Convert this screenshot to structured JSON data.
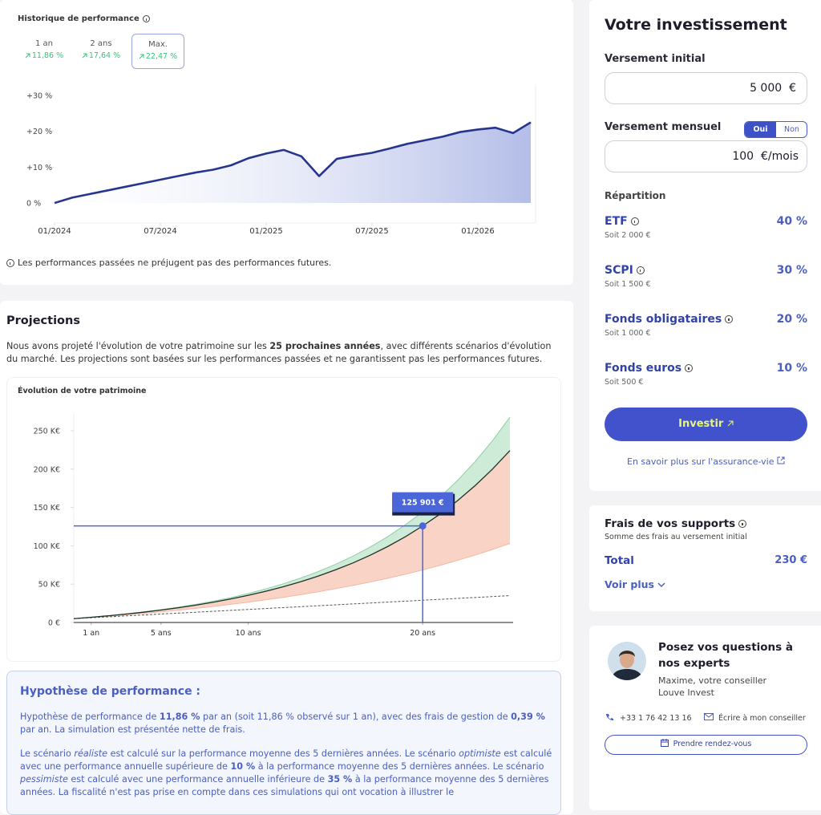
{
  "performance": {
    "title": "Historique de performance",
    "tabs": [
      {
        "label": "1 an",
        "change": "11,86 %"
      },
      {
        "label": "2 ans",
        "change": "17,64 %"
      },
      {
        "label": "Max.",
        "change": "22,47 %"
      }
    ],
    "chart": {
      "type": "line",
      "color": "#27358f",
      "x": [
        "01/2024",
        "02/2024",
        "03/2024",
        "04/2024",
        "05/2024",
        "06/2024",
        "07/2024",
        "08/2024",
        "09/2024",
        "10/2024",
        "11/2024",
        "12/2024",
        "01/2025",
        "02/2025",
        "03/2025",
        "04/2025",
        "05/2025",
        "06/2025",
        "07/2025",
        "08/2025",
        "09/2025",
        "10/2025",
        "11/2025",
        "12/2025",
        "01/2026",
        "02/2026",
        "03/2026",
        "04/2026"
      ],
      "values": [
        0,
        1.5,
        2.5,
        3.5,
        4.5,
        5.5,
        6.5,
        7.5,
        8.5,
        9.3,
        10.5,
        12.5,
        13.8,
        14.8,
        13,
        7.5,
        12.3,
        13.2,
        14,
        15.2,
        16.5,
        17.5,
        18.5,
        19.8,
        20.5,
        21,
        19.5,
        22.5
      ],
      "xlim": [
        "01/2024",
        "04/2026"
      ],
      "xticks": [
        "01/2024",
        "07/2024",
        "01/2025",
        "07/2025",
        "01/2026"
      ],
      "ylim": [
        -2,
        31
      ],
      "yticks": [
        {
          "value": 0,
          "label": "0 %"
        },
        {
          "value": 10,
          "label": "+10 %"
        },
        {
          "value": 20,
          "label": "+20 %"
        },
        {
          "value": 30,
          "label": "+30 %"
        }
      ]
    },
    "disclaimer": "Les performances passées ne préjugent pas des performances futures."
  },
  "projections": {
    "title": "Projections",
    "intro": [
      "Nous avons projeté l'évolution de votre patrimoine sur les ",
      "25 prochaines années",
      ", avec différents scénarios d'évolution du marché. Les projections sont basées sur les performances passées et ne garantissent pas les performances futures."
    ],
    "chart": {
      "type": "area",
      "title": "Évolution de votre patrimoine",
      "x": [
        0,
        1,
        2,
        3,
        4,
        5,
        6,
        7,
        8,
        9,
        10,
        11,
        12,
        13,
        14,
        15,
        16,
        17,
        18,
        19,
        20,
        21,
        22,
        23,
        24,
        25
      ],
      "optimistic": {
        "color": "#cdebd6",
        "values": [
          5.0,
          6.8,
          8.9,
          11.2,
          13.8,
          16.7,
          20.0,
          23.7,
          27.9,
          32.5,
          37.8,
          43.7,
          50.4,
          57.9,
          66.3,
          75.8,
          86.5,
          98.5,
          112.0,
          127.3,
          144.0,
          163.6,
          185.3,
          209.6,
          237.0,
          267.8
        ]
      },
      "realistic": {
        "color": "#1f3327",
        "values": [
          5.0,
          6.8,
          8.8,
          11.0,
          13.4,
          16.2,
          19.2,
          22.6,
          26.4,
          30.7,
          35.4,
          40.7,
          46.6,
          53.1,
          60.4,
          68.6,
          77.6,
          87.8,
          99.1,
          111.7,
          125.9,
          141.4,
          158.8,
          178.3,
          200.0,
          224.2
        ]
      },
      "pessimistic": {
        "color": "#f9d3c5",
        "values": [
          5.0,
          6.6,
          8.2,
          10.0,
          11.9,
          13.9,
          16.1,
          18.4,
          20.9,
          23.6,
          26.4,
          29.5,
          32.7,
          36.2,
          40.0,
          44.0,
          48.2,
          52.8,
          57.7,
          62.9,
          68.5,
          74.5,
          81.0,
          87.8,
          95.2,
          103.0
        ]
      },
      "contributions": {
        "color": "#555555",
        "values": [
          5.0,
          6.2,
          7.4,
          8.6,
          9.8,
          11.0,
          12.2,
          13.4,
          14.6,
          15.8,
          17.0,
          18.2,
          19.4,
          20.6,
          21.8,
          23.0,
          24.2,
          25.4,
          26.6,
          27.8,
          29.0,
          30.2,
          31.4,
          32.6,
          33.8,
          35.0
        ]
      },
      "highlight": {
        "x": 20,
        "value": 125.901,
        "label": "125 901 €",
        "color": "#4a66d8"
      },
      "xlim": [
        0,
        25
      ],
      "xticks": [
        {
          "value": 1,
          "label": "1 an"
        },
        {
          "value": 5,
          "label": "5 ans"
        },
        {
          "value": 10,
          "label": "10 ans"
        },
        {
          "value": 20,
          "label": "20 ans"
        }
      ],
      "ylim": [
        0,
        280
      ],
      "yticks": [
        {
          "value": 0,
          "label": "0 €"
        },
        {
          "value": 50,
          "label": "50 K€"
        },
        {
          "value": 100,
          "label": "100 K€"
        },
        {
          "value": 150,
          "label": "150 K€"
        },
        {
          "value": 200,
          "label": "200 K€"
        },
        {
          "value": 250,
          "label": "250 K€"
        }
      ]
    }
  },
  "hypothesis": {
    "title": "Hypothèse de performance :",
    "p1": [
      "Hypothèse de performance de ",
      "11,86 %",
      " par an (soit 11,86 % observé sur 1 an), avec des frais de gestion de ",
      "0,39 %",
      " par an. La simulation est présentée nette de frais."
    ],
    "p2": [
      "Le scénario ",
      "réaliste",
      " est calculé sur la performance moyenne des 5 dernières années. Le scénario ",
      "optimiste",
      " est calculé avec une performance annuelle supérieure de ",
      "10 %",
      " à la performance moyenne des 5 dernières années. Le scénario ",
      "pessimiste",
      " est calculé avec une performance annuelle inférieure de ",
      "35 %",
      " à la performance moyenne des 5 dernières années. La fiscalité n'est pas prise en compte dans ces simulations qui ont vocation à illustrer le"
    ]
  },
  "investment": {
    "title": "Votre investissement",
    "initial": {
      "label": "Versement initial",
      "amount": "5 000",
      "unit": "€"
    },
    "monthly": {
      "label": "Versement mensuel",
      "toggle": [
        "Oui",
        "Non"
      ],
      "amount": "100",
      "unit": "€/mois"
    },
    "allocation_title": "Répartition",
    "allocation": [
      {
        "name": "ETF",
        "amount": "Soit 2 000 €",
        "share": "40 %"
      },
      {
        "name": "SCPI",
        "amount": "Soit 1 500 €",
        "share": "30 %"
      },
      {
        "name": "Fonds obligataires",
        "amount": "Soit 1 000 €",
        "share": "20 %"
      },
      {
        "name": "Fonds euros",
        "amount": "Soit 500 €",
        "share": "10 %"
      }
    ],
    "button": "Investir",
    "link": "En savoir plus sur l'assurance-vie"
  },
  "fees": {
    "title": "Frais de vos supports",
    "subtitle": "Somme des frais au versement initial",
    "total_label": "Total",
    "total": "230 €",
    "more": "Voir plus"
  },
  "contact": {
    "title": "Posez vos questions à nos experts",
    "advisor": "Maxime, votre conseiller",
    "company": "Louve Invest",
    "phone": "+33 1 76 42 13 16",
    "write": "Écrire à mon conseiller",
    "button": "Prendre rendez-vous"
  }
}
